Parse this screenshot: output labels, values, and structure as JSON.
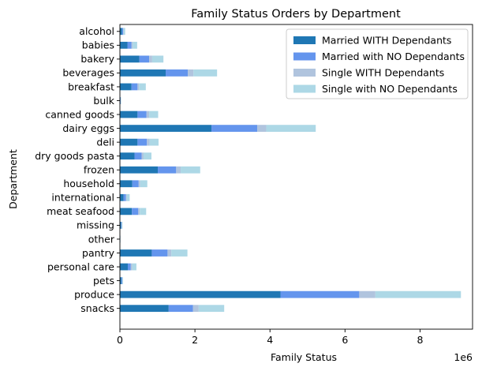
{
  "chart_data": {
    "type": "bar",
    "orientation": "horizontal",
    "stacked": true,
    "title": "Family Status Orders by Department",
    "xlabel": "Family Status",
    "ylabel": "Department",
    "x_offset_label": "1e6",
    "xlim": [
      0,
      9400000
    ],
    "x_ticks": [
      0,
      2000000,
      4000000,
      6000000,
      8000000
    ],
    "x_tick_labels": [
      "0",
      "2",
      "4",
      "6",
      "8"
    ],
    "grid": false,
    "legend_position": "top-right",
    "categories": [
      "alcohol",
      "babies",
      "bakery",
      "beverages",
      "breakfast",
      "bulk",
      "canned goods",
      "dairy eggs",
      "deli",
      "dry goods pasta",
      "frozen",
      "household",
      "international",
      "meat seafood",
      "missing",
      "other",
      "pantry",
      "personal care",
      "pets",
      "produce",
      "snacks"
    ],
    "series": [
      {
        "name": "Married WITH Dependants",
        "color": "#1f77b4",
        "values": [
          60000,
          200000,
          520000,
          1220000,
          310000,
          15000,
          470000,
          2440000,
          470000,
          390000,
          1010000,
          330000,
          100000,
          320000,
          30000,
          7000,
          850000,
          210000,
          40000,
          4280000,
          1300000
        ]
      },
      {
        "name": "Married with NO Dependants",
        "color": "#6495ed",
        "values": [
          30000,
          110000,
          260000,
          590000,
          160000,
          8000,
          240000,
          1220000,
          250000,
          190000,
          490000,
          170000,
          60000,
          170000,
          15000,
          3000,
          420000,
          80000,
          20000,
          2100000,
          650000
        ]
      },
      {
        "name": "Single WITH Dependants",
        "color": "#b0c4de",
        "values": [
          10000,
          30000,
          80000,
          150000,
          40000,
          2000,
          70000,
          240000,
          70000,
          50000,
          120000,
          40000,
          20000,
          40000,
          5000,
          1000,
          100000,
          40000,
          5000,
          430000,
          150000
        ]
      },
      {
        "name": "Single with NO Dependants",
        "color": "#add8e6",
        "values": [
          40000,
          120000,
          300000,
          630000,
          180000,
          8000,
          240000,
          1320000,
          240000,
          210000,
          520000,
          190000,
          80000,
          170000,
          20000,
          4000,
          430000,
          110000,
          20000,
          2280000,
          680000
        ]
      }
    ]
  }
}
